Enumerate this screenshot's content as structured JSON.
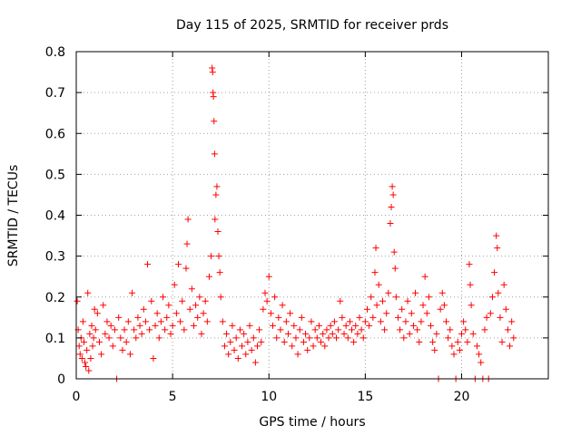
{
  "chart_data": {
    "type": "scatter",
    "title": "Day 115 of 2025, SRMTID for receiver prds",
    "xlabel": "GPS time / hours",
    "ylabel": "SRMTID / TECUs",
    "xlim": [
      0,
      24.5
    ],
    "ylim": [
      0,
      0.8
    ],
    "xticks": [
      0,
      5,
      10,
      15,
      20
    ],
    "yticks": [
      0,
      0.1,
      0.2,
      0.3,
      0.4,
      0.5,
      0.6,
      0.7,
      0.8
    ],
    "xtick_labels": [
      "0",
      "5",
      "10",
      "15",
      "20"
    ],
    "ytick_labels": [
      "0",
      "0.1",
      "0.2",
      "0.3",
      "0.4",
      "0.5",
      "0.6",
      "0.7",
      "0.8"
    ],
    "grid": true,
    "marker": "+",
    "color": "#ff0000",
    "series": [
      {
        "name": "SRMTID",
        "points": [
          [
            0.05,
            0.19
          ],
          [
            0.1,
            0.12
          ],
          [
            0.15,
            0.08
          ],
          [
            0.2,
            0.06
          ],
          [
            0.25,
            0.1
          ],
          [
            0.3,
            0.05
          ],
          [
            0.35,
            0.14
          ],
          [
            0.4,
            0.09
          ],
          [
            0.45,
            0.04
          ],
          [
            0.5,
            0.03
          ],
          [
            0.55,
            0.07
          ],
          [
            0.6,
            0.21
          ],
          [
            0.65,
            0.02
          ],
          [
            0.7,
            0.11
          ],
          [
            0.75,
            0.05
          ],
          [
            0.8,
            0.13
          ],
          [
            0.85,
            0.08
          ],
          [
            0.9,
            0.1
          ],
          [
            0.95,
            0.17
          ],
          [
            1.0,
            0.12
          ],
          [
            1.1,
            0.16
          ],
          [
            1.2,
            0.09
          ],
          [
            1.3,
            0.06
          ],
          [
            1.4,
            0.18
          ],
          [
            1.5,
            0.11
          ],
          [
            1.6,
            0.14
          ],
          [
            1.7,
            0.1
          ],
          [
            1.8,
            0.13
          ],
          [
            1.9,
            0.08
          ],
          [
            2.0,
            0.12
          ],
          [
            2.1,
            0.0
          ],
          [
            2.2,
            0.15
          ],
          [
            2.3,
            0.1
          ],
          [
            2.4,
            0.07
          ],
          [
            2.5,
            0.12
          ],
          [
            2.6,
            0.09
          ],
          [
            2.7,
            0.14
          ],
          [
            2.8,
            0.06
          ],
          [
            2.9,
            0.21
          ],
          [
            3.0,
            0.12
          ],
          [
            3.1,
            0.1
          ],
          [
            3.2,
            0.15
          ],
          [
            3.3,
            0.13
          ],
          [
            3.4,
            0.11
          ],
          [
            3.5,
            0.17
          ],
          [
            3.6,
            0.14
          ],
          [
            3.7,
            0.28
          ],
          [
            3.8,
            0.12
          ],
          [
            3.9,
            0.19
          ],
          [
            4.0,
            0.05
          ],
          [
            4.1,
            0.13
          ],
          [
            4.2,
            0.16
          ],
          [
            4.3,
            0.1
          ],
          [
            4.4,
            0.14
          ],
          [
            4.5,
            0.2
          ],
          [
            4.6,
            0.12
          ],
          [
            4.7,
            0.15
          ],
          [
            4.8,
            0.18
          ],
          [
            4.9,
            0.11
          ],
          [
            5.0,
            0.13
          ],
          [
            5.1,
            0.23
          ],
          [
            5.2,
            0.16
          ],
          [
            5.3,
            0.28
          ],
          [
            5.4,
            0.14
          ],
          [
            5.5,
            0.19
          ],
          [
            5.6,
            0.12
          ],
          [
            5.7,
            0.27
          ],
          [
            5.75,
            0.33
          ],
          [
            5.8,
            0.39
          ],
          [
            5.9,
            0.17
          ],
          [
            6.0,
            0.22
          ],
          [
            6.1,
            0.13
          ],
          [
            6.2,
            0.18
          ],
          [
            6.3,
            0.15
          ],
          [
            6.4,
            0.2
          ],
          [
            6.5,
            0.11
          ],
          [
            6.6,
            0.16
          ],
          [
            6.7,
            0.19
          ],
          [
            6.8,
            0.14
          ],
          [
            6.9,
            0.25
          ],
          [
            7.0,
            0.3
          ],
          [
            7.05,
            0.76
          ],
          [
            7.08,
            0.75
          ],
          [
            7.1,
            0.7
          ],
          [
            7.12,
            0.69
          ],
          [
            7.15,
            0.63
          ],
          [
            7.18,
            0.55
          ],
          [
            7.2,
            0.39
          ],
          [
            7.25,
            0.45
          ],
          [
            7.3,
            0.47
          ],
          [
            7.35,
            0.36
          ],
          [
            7.4,
            0.3
          ],
          [
            7.45,
            0.26
          ],
          [
            7.5,
            0.2
          ],
          [
            7.6,
            0.14
          ],
          [
            7.7,
            0.08
          ],
          [
            7.8,
            0.11
          ],
          [
            7.9,
            0.06
          ],
          [
            8.0,
            0.09
          ],
          [
            8.1,
            0.13
          ],
          [
            8.2,
            0.07
          ],
          [
            8.3,
            0.1
          ],
          [
            8.4,
            0.05
          ],
          [
            8.5,
            0.12
          ],
          [
            8.6,
            0.08
          ],
          [
            8.7,
            0.11
          ],
          [
            8.8,
            0.06
          ],
          [
            8.9,
            0.09
          ],
          [
            9.0,
            0.13
          ],
          [
            9.1,
            0.07
          ],
          [
            9.2,
            0.1
          ],
          [
            9.3,
            0.04
          ],
          [
            9.4,
            0.08
          ],
          [
            9.5,
            0.12
          ],
          [
            9.6,
            0.09
          ],
          [
            9.7,
            0.17
          ],
          [
            9.8,
            0.21
          ],
          [
            9.9,
            0.19
          ],
          [
            10.0,
            0.25
          ],
          [
            10.1,
            0.16
          ],
          [
            10.2,
            0.13
          ],
          [
            10.3,
            0.2
          ],
          [
            10.4,
            0.1
          ],
          [
            10.5,
            0.15
          ],
          [
            10.6,
            0.12
          ],
          [
            10.7,
            0.18
          ],
          [
            10.8,
            0.09
          ],
          [
            10.9,
            0.14
          ],
          [
            11.0,
            0.11
          ],
          [
            11.1,
            0.16
          ],
          [
            11.2,
            0.08
          ],
          [
            11.3,
            0.13
          ],
          [
            11.4,
            0.1
          ],
          [
            11.5,
            0.06
          ],
          [
            11.6,
            0.12
          ],
          [
            11.7,
            0.15
          ],
          [
            11.8,
            0.09
          ],
          [
            11.9,
            0.11
          ],
          [
            12.0,
            0.07
          ],
          [
            12.1,
            0.1
          ],
          [
            12.2,
            0.14
          ],
          [
            12.3,
            0.08
          ],
          [
            12.4,
            0.12
          ],
          [
            12.5,
            0.1
          ],
          [
            12.6,
            0.13
          ],
          [
            12.7,
            0.09
          ],
          [
            12.8,
            0.11
          ],
          [
            12.9,
            0.08
          ],
          [
            13.0,
            0.12
          ],
          [
            13.1,
            0.1
          ],
          [
            13.2,
            0.13
          ],
          [
            13.3,
            0.11
          ],
          [
            13.4,
            0.14
          ],
          [
            13.5,
            0.1
          ],
          [
            13.6,
            0.12
          ],
          [
            13.7,
            0.19
          ],
          [
            13.8,
            0.15
          ],
          [
            13.9,
            0.11
          ],
          [
            14.0,
            0.13
          ],
          [
            14.1,
            0.1
          ],
          [
            14.2,
            0.14
          ],
          [
            14.3,
            0.12
          ],
          [
            14.4,
            0.09
          ],
          [
            14.5,
            0.13
          ],
          [
            14.6,
            0.11
          ],
          [
            14.7,
            0.15
          ],
          [
            14.8,
            0.12
          ],
          [
            14.9,
            0.1
          ],
          [
            15.0,
            0.14
          ],
          [
            15.1,
            0.17
          ],
          [
            15.2,
            0.13
          ],
          [
            15.3,
            0.2
          ],
          [
            15.4,
            0.15
          ],
          [
            15.5,
            0.26
          ],
          [
            15.55,
            0.32
          ],
          [
            15.6,
            0.18
          ],
          [
            15.7,
            0.23
          ],
          [
            15.8,
            0.14
          ],
          [
            15.9,
            0.19
          ],
          [
            16.0,
            0.12
          ],
          [
            16.1,
            0.16
          ],
          [
            16.2,
            0.21
          ],
          [
            16.3,
            0.38
          ],
          [
            16.35,
            0.42
          ],
          [
            16.4,
            0.47
          ],
          [
            16.45,
            0.45
          ],
          [
            16.5,
            0.31
          ],
          [
            16.55,
            0.27
          ],
          [
            16.6,
            0.2
          ],
          [
            16.7,
            0.15
          ],
          [
            16.8,
            0.12
          ],
          [
            16.9,
            0.17
          ],
          [
            17.0,
            0.1
          ],
          [
            17.1,
            0.14
          ],
          [
            17.2,
            0.19
          ],
          [
            17.3,
            0.11
          ],
          [
            17.4,
            0.16
          ],
          [
            17.5,
            0.13
          ],
          [
            17.6,
            0.21
          ],
          [
            17.7,
            0.12
          ],
          [
            17.8,
            0.09
          ],
          [
            17.9,
            0.14
          ],
          [
            18.0,
            0.18
          ],
          [
            18.1,
            0.25
          ],
          [
            18.2,
            0.16
          ],
          [
            18.3,
            0.2
          ],
          [
            18.4,
            0.13
          ],
          [
            18.5,
            0.09
          ],
          [
            18.6,
            0.07
          ],
          [
            18.7,
            0.11
          ],
          [
            18.8,
            0.0
          ],
          [
            18.9,
            0.17
          ],
          [
            19.0,
            0.21
          ],
          [
            19.1,
            0.18
          ],
          [
            19.2,
            0.14
          ],
          [
            19.3,
            0.1
          ],
          [
            19.4,
            0.12
          ],
          [
            19.5,
            0.08
          ],
          [
            19.6,
            0.06
          ],
          [
            19.7,
            0.0
          ],
          [
            19.8,
            0.09
          ],
          [
            19.9,
            0.07
          ],
          [
            20.0,
            0.11
          ],
          [
            20.1,
            0.14
          ],
          [
            20.2,
            0.12
          ],
          [
            20.3,
            0.09
          ],
          [
            20.4,
            0.28
          ],
          [
            20.45,
            0.23
          ],
          [
            20.5,
            0.18
          ],
          [
            20.6,
            0.11
          ],
          [
            20.7,
            0.0
          ],
          [
            20.8,
            0.08
          ],
          [
            20.9,
            0.06
          ],
          [
            21.0,
            0.04
          ],
          [
            21.1,
            0.0
          ],
          [
            21.2,
            0.12
          ],
          [
            21.3,
            0.15
          ],
          [
            21.4,
            0.0
          ],
          [
            21.5,
            0.16
          ],
          [
            21.6,
            0.2
          ],
          [
            21.7,
            0.26
          ],
          [
            21.8,
            0.35
          ],
          [
            21.85,
            0.32
          ],
          [
            21.9,
            0.21
          ],
          [
            22.0,
            0.15
          ],
          [
            22.1,
            0.09
          ],
          [
            22.2,
            0.23
          ],
          [
            22.3,
            0.17
          ],
          [
            22.4,
            0.12
          ],
          [
            22.5,
            0.08
          ],
          [
            22.6,
            0.14
          ],
          [
            22.7,
            0.1
          ]
        ]
      }
    ]
  }
}
